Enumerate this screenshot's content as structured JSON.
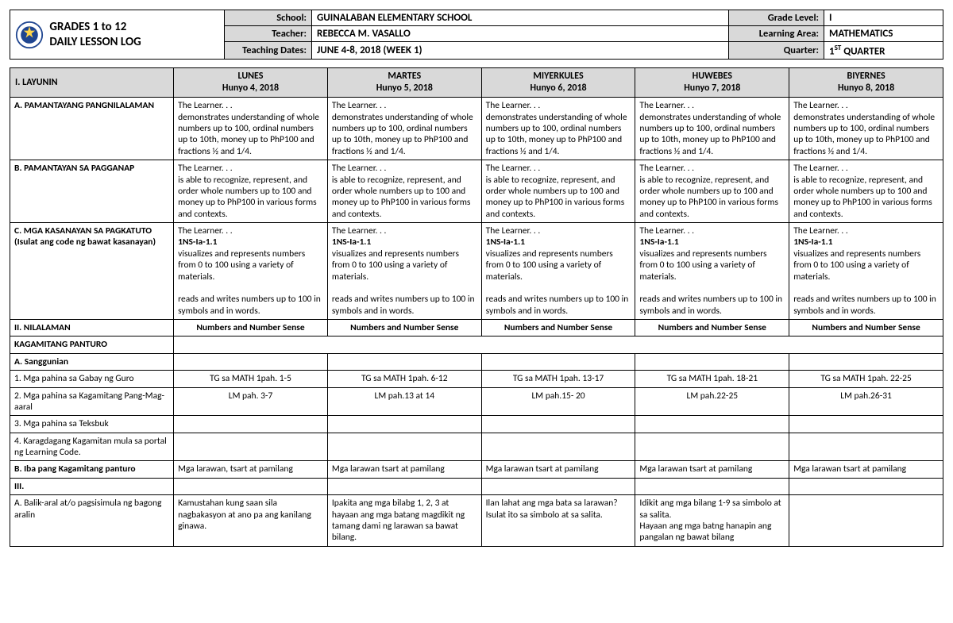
{
  "header": {
    "title_line1": "GRADES 1 to 12",
    "title_line2": "DAILY LESSON LOG",
    "labels": {
      "school": "School:",
      "teacher": "Teacher:",
      "dates": "Teaching Dates:",
      "grade": "Grade Level:",
      "area": "Learning Area:",
      "quarter": "Quarter:"
    },
    "school": "GUINALABAN ELEMENTARY SCHOOL",
    "teacher": "REBECCA M. VASALLO",
    "dates": "JUNE 4-8, 2018 (WEEK 1)",
    "grade": "I",
    "area": "MATHEMATICS",
    "quarter_pre": "1",
    "quarter_sup": "ST",
    "quarter_post": " QUARTER"
  },
  "days": {
    "d1": {
      "name": "LUNES",
      "date": "Hunyo 4, 2018"
    },
    "d2": {
      "name": "MARTES",
      "date": "Hunyo 5, 2018"
    },
    "d3": {
      "name": "MIYERKULES",
      "date": "Hunyo 6, 2018"
    },
    "d4": {
      "name": "HUWEBES",
      "date": "Hunyo 7, 2018"
    },
    "d5": {
      "name": "BIYERNES",
      "date": "Hunyo 8, 2018"
    }
  },
  "section1": {
    "label": "I. LAYUNIN"
  },
  "rowA": {
    "label": "A. PAMANTAYANG PANGNILALAMAN",
    "text": "The Learner. . .\ndemonstrates understanding of whole numbers up to 100, ordinal numbers up to 10th, money up to PhP100 and fractions ½ and 1/4."
  },
  "rowB": {
    "label": "B. PAMANTAYAN SA PAGGANAP",
    "text": "The Learner. . .\nis able to recognize, represent, and order whole numbers up to 100 and money up to PhP100 in various forms and contexts."
  },
  "rowC": {
    "label": "C. MGA KASANAYAN SA PAGKATUTO (Isulat ang code ng bawat kasanayan)",
    "lead": "The Learner. . .",
    "code": "1NS-Ia-1.1",
    "body": "visualizes and represents numbers from 0 to 100 using a variety of materials.",
    "tail": "reads and writes numbers up to 100 in symbols and in words."
  },
  "rowII": {
    "label": "II.  NILALAMAN",
    "value": "Numbers and Number Sense"
  },
  "rowKag": {
    "label": "KAGAMITANG PANTURO"
  },
  "rowSang": {
    "label": "A.   Sanggunian"
  },
  "row1": {
    "label": "1. Mga pahina sa Gabay ng Guro",
    "d1": "TG sa MATH 1pah. 1-5",
    "d2": "TG sa MATH 1pah. 6-12",
    "d3": "TG sa MATH 1pah. 13-17",
    "d4": "TG sa MATH 1pah. 18-21",
    "d5": "TG sa MATH 1pah. 22-25"
  },
  "row2": {
    "label": "2. Mga pahina sa Kagamitang Pang-Mag-aaral",
    "d1": "LM pah. 3-7",
    "d2": "LM pah.13 at 14",
    "d3": "LM pah.15- 20",
    "d4": "LM pah.22-25",
    "d5": "LM pah.26-31"
  },
  "row3": {
    "label": "3. Mga pahina sa Teksbuk"
  },
  "row4": {
    "label": "4. Karagdagang Kagamitan mula sa portal ng Learning Code."
  },
  "rowBiba": {
    "label": "B.  Iba pang Kagamitang panturo",
    "d1": "Mga larawan, tsart at pamilang",
    "d2": "Mga larawan tsart at pamilang",
    "d3": "Mga larawan tsart at pamilang",
    "d4": "Mga larawan tsart at pamilang",
    "d5": "Mga larawan tsart at pamilang"
  },
  "rowIII": {
    "label": "III."
  },
  "rowBalik": {
    "label": "A. Balik-aral at/o pagsisimula ng bagong aralin",
    "d1": "Kamustahan kung saan sila nagbakasyon at ano pa ang kanilang ginawa.",
    "d2": "Ipakita ang mga bilabg 1, 2, 3 at hayaan ang mga  batang magdikit ng tamang dami ng larawan sa bawat bilang.",
    "d3": "Ilan lahat ang mga bata sa larawan? Isulat ito sa simbolo at sa salita.",
    "d4": "Idikit ang mga  bilang 1-9 sa simbolo at sa salita.\nHayaan ang mga batng hanapin ang pangalan ng bawat bilang",
    "d5": ""
  }
}
